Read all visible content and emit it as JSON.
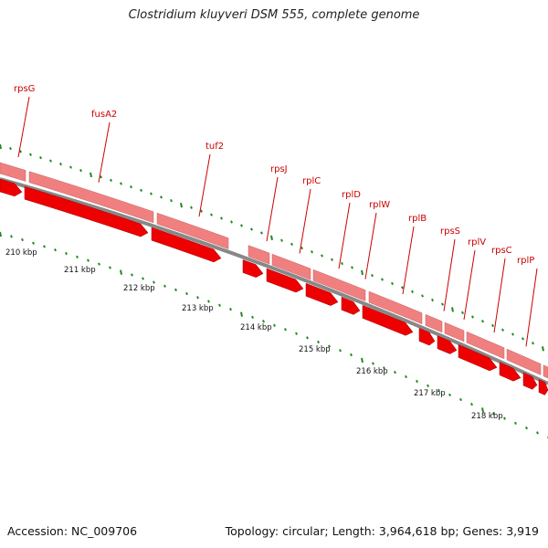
{
  "title": "Clostridium kluyveri DSM 555, complete genome",
  "footer": {
    "accession": "Accession: NC_009706",
    "summary": "Topology: circular; Length: 3,964,618 bp; Genes: 3,919"
  },
  "colors": {
    "gene_label": "#cc0000",
    "gene_arrow": "#ee0000",
    "gene_track_light": "#f08080",
    "backbone": "#808080",
    "tick": "#228822"
  },
  "genes": [
    {
      "label": "rpsG"
    },
    {
      "label": "fusA2"
    },
    {
      "label": "tuf2"
    },
    {
      "label": "rpsJ"
    },
    {
      "label": "rplC"
    },
    {
      "label": "rplD"
    },
    {
      "label": "rplW"
    },
    {
      "label": "rplB"
    },
    {
      "label": "rpsS"
    },
    {
      "label": "rplV"
    },
    {
      "label": "rpsC"
    },
    {
      "label": "rplP"
    }
  ],
  "kbp_labels": [
    "210 kbp",
    "211 kbp",
    "212 kbp",
    "213 kbp",
    "214 kbp",
    "215 kbp",
    "216 kbp",
    "217 kbp",
    "218 kbp"
  ]
}
